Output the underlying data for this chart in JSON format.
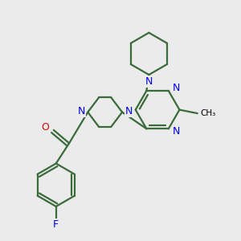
{
  "background_color": "#ebebeb",
  "bond_color": "#3a6b3a",
  "N_color": "#0000ee",
  "O_color": "#dd0000",
  "F_color": "#0000ee",
  "line_width": 1.6,
  "figsize": [
    3.0,
    3.0
  ],
  "dpi": 100,
  "xlim": [
    0,
    10
  ],
  "ylim": [
    0,
    10
  ]
}
